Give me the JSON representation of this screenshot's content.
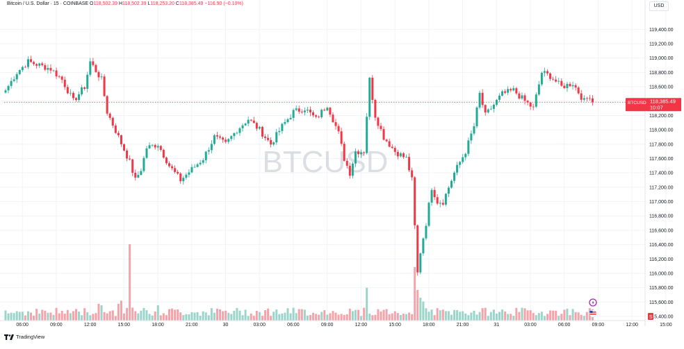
{
  "header": {
    "symbol_desc": "Bitcoin / U.S. Dollar · 15 · COINBASE",
    "o_label": "O",
    "o_value": "118,502.39",
    "h_label": "H",
    "h_value": "118,502.39",
    "l_label": "L",
    "l_value": "118,253.20",
    "c_label": "C",
    "c_value": "118,385.49",
    "change": "−116.90 (−0.10%)"
  },
  "currency_button": "USD",
  "watermark": "BTCUSD",
  "brand": "TradingView",
  "colors": {
    "up": "#22ab94",
    "down": "#f23645",
    "vol_up": "#9bd5ca",
    "vol_down": "#f5a3a9",
    "grid": "#f0f3fa",
    "price_line": "#f23645"
  },
  "chart_data": {
    "type": "candlestick",
    "ylim": [
      115400,
      119500
    ],
    "y_ticks": [
      "119,400.00",
      "119,200.00",
      "119,000.00",
      "118,800.00",
      "118,600.00",
      "118,400.00",
      "118,200.00",
      "118,000.00",
      "117,800.00",
      "117,600.00",
      "117,400.00",
      "117,200.00",
      "117,000.00",
      "116,800.00",
      "116,600.00",
      "116,400.00",
      "116,200.00",
      "116,000.00",
      "115,800.00",
      "115,600.00",
      "115,400.00"
    ],
    "x_ticks": [
      "06:00",
      "09:00",
      "12:00",
      "15:00",
      "18:00",
      "21:00",
      "30",
      "03:00",
      "06:00",
      "09:00",
      "12:00",
      "15:00",
      "18:00",
      "21:00",
      "31",
      "03:00",
      "06:00",
      "09:00",
      "12:00",
      "15:00"
    ],
    "last_price": {
      "symbol": "BTCUSD",
      "value": "118,385.49",
      "countdown": "10:07"
    },
    "anchors": [
      {
        "i": 0,
        "p": 118550
      },
      {
        "i": 4,
        "p": 118800
      },
      {
        "i": 8,
        "p": 118950
      },
      {
        "i": 12,
        "p": 118900
      },
      {
        "i": 16,
        "p": 118850
      },
      {
        "i": 20,
        "p": 118700
      },
      {
        "i": 24,
        "p": 118400
      },
      {
        "i": 28,
        "p": 118600
      },
      {
        "i": 30,
        "p": 118950
      },
      {
        "i": 34,
        "p": 118700
      },
      {
        "i": 36,
        "p": 118250
      },
      {
        "i": 40,
        "p": 117900
      },
      {
        "i": 44,
        "p": 117550
      },
      {
        "i": 46,
        "p": 117300
      },
      {
        "i": 48,
        "p": 117450
      },
      {
        "i": 50,
        "p": 117750
      },
      {
        "i": 54,
        "p": 117800
      },
      {
        "i": 58,
        "p": 117500
      },
      {
        "i": 62,
        "p": 117300
      },
      {
        "i": 66,
        "p": 117450
      },
      {
        "i": 70,
        "p": 117600
      },
      {
        "i": 74,
        "p": 117900
      },
      {
        "i": 78,
        "p": 117800
      },
      {
        "i": 82,
        "p": 118000
      },
      {
        "i": 86,
        "p": 118150
      },
      {
        "i": 90,
        "p": 118000
      },
      {
        "i": 94,
        "p": 117800
      },
      {
        "i": 98,
        "p": 118050
      },
      {
        "i": 102,
        "p": 118250
      },
      {
        "i": 106,
        "p": 118300
      },
      {
        "i": 110,
        "p": 118150
      },
      {
        "i": 114,
        "p": 118350
      },
      {
        "i": 118,
        "p": 117950
      },
      {
        "i": 120,
        "p": 117600
      },
      {
        "i": 122,
        "p": 117400
      },
      {
        "i": 124,
        "p": 117700
      },
      {
        "i": 127,
        "p": 117700
      },
      {
        "i": 129,
        "p": 118700
      },
      {
        "i": 131,
        "p": 118200
      },
      {
        "i": 134,
        "p": 117900
      },
      {
        "i": 138,
        "p": 117700
      },
      {
        "i": 142,
        "p": 117600
      },
      {
        "i": 144,
        "p": 117300
      },
      {
        "i": 146,
        "p": 116000
      },
      {
        "i": 147,
        "p": 116300
      },
      {
        "i": 149,
        "p": 116700
      },
      {
        "i": 151,
        "p": 117200
      },
      {
        "i": 153,
        "p": 117000
      },
      {
        "i": 155,
        "p": 117000
      },
      {
        "i": 159,
        "p": 117400
      },
      {
        "i": 163,
        "p": 117700
      },
      {
        "i": 166,
        "p": 118050
      },
      {
        "i": 168,
        "p": 118500
      },
      {
        "i": 170,
        "p": 118200
      },
      {
        "i": 172,
        "p": 118300
      },
      {
        "i": 176,
        "p": 118500
      },
      {
        "i": 180,
        "p": 118550
      },
      {
        "i": 184,
        "p": 118400
      },
      {
        "i": 187,
        "p": 118300
      },
      {
        "i": 190,
        "p": 118800
      },
      {
        "i": 193,
        "p": 118750
      },
      {
        "i": 197,
        "p": 118600
      },
      {
        "i": 201,
        "p": 118650
      },
      {
        "i": 205,
        "p": 118400
      },
      {
        "i": 207,
        "p": 118480
      },
      {
        "i": 208,
        "p": 118385
      }
    ],
    "volume_spikes": [
      {
        "i": 44,
        "v": 10
      },
      {
        "i": 128,
        "v": 4.3
      },
      {
        "i": 145,
        "v": 7
      },
      {
        "i": 146,
        "v": 4
      },
      {
        "i": 147,
        "v": 3
      },
      {
        "i": 148,
        "v": 2.5
      },
      {
        "i": 40,
        "v": 2.2
      },
      {
        "i": 41,
        "v": 2.6
      },
      {
        "i": 33,
        "v": 2.2
      },
      {
        "i": 34,
        "v": 2
      },
      {
        "i": 54,
        "v": 2
      }
    ]
  }
}
